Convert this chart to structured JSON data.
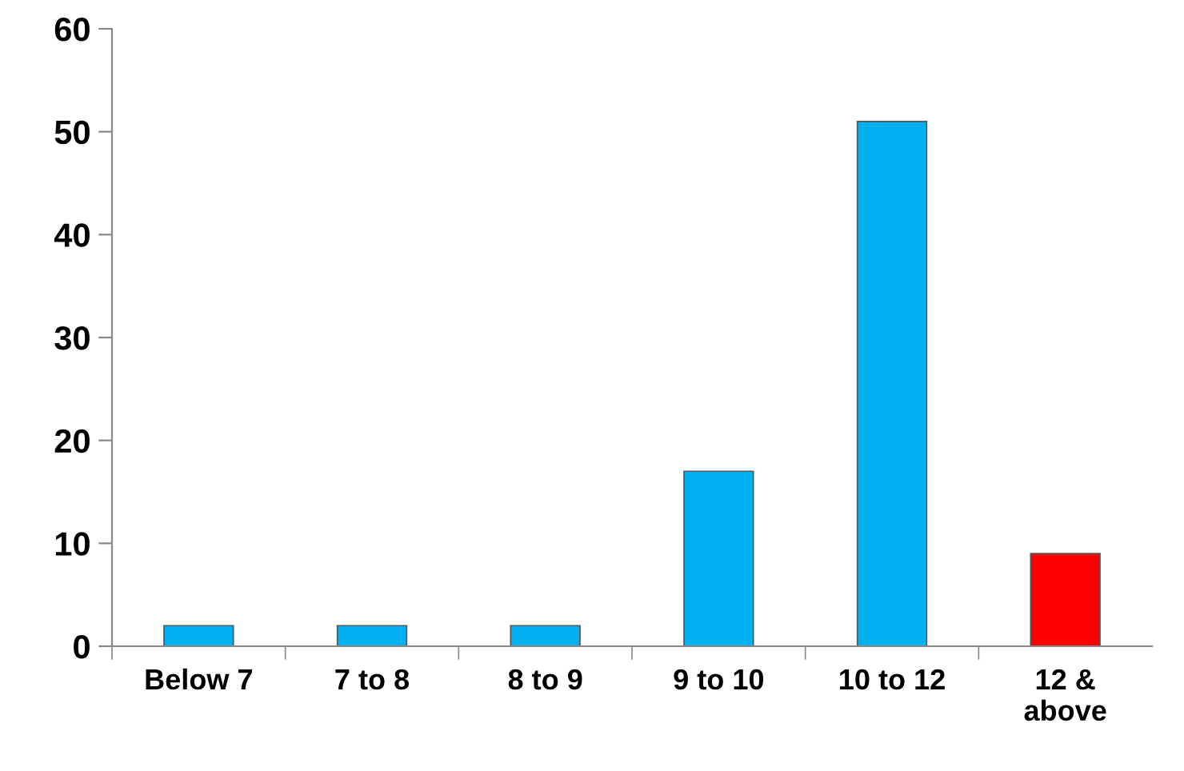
{
  "chart_data": {
    "type": "bar",
    "categories": [
      "Below 7",
      "7 to 8",
      "8 to 9",
      "9 to 10",
      "10 to 12",
      "12 & above"
    ],
    "values": [
      2,
      2,
      2,
      17,
      51,
      9
    ],
    "colors": [
      "#00b0f0",
      "#00b0f0",
      "#00b0f0",
      "#00b0f0",
      "#00b0f0",
      "#ff0000"
    ],
    "ylim": [
      0,
      60
    ],
    "yticks": [
      0,
      10,
      20,
      30,
      40,
      50,
      60
    ],
    "grid": false
  }
}
